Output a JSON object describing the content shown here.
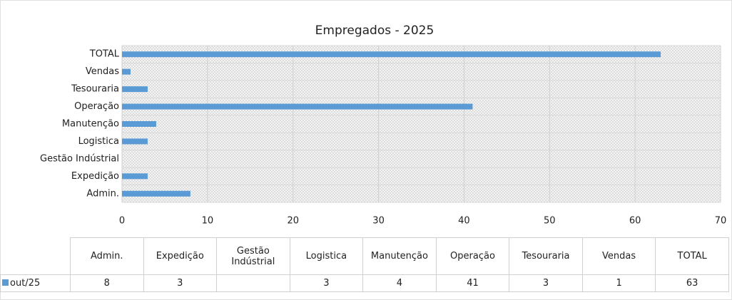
{
  "chart_data": {
    "type": "bar",
    "orientation": "horizontal",
    "title": "Empregados - 2025",
    "categories": [
      "Admin.",
      "Expedição",
      "Gestão Indústrial",
      "Logistica",
      "Manutenção",
      "Operação",
      "Tesouraria",
      "Vendas",
      "TOTAL"
    ],
    "series": [
      {
        "name": "out/25",
        "color": "#5b9bd5",
        "values": [
          8,
          3,
          null,
          3,
          4,
          41,
          3,
          1,
          63
        ]
      }
    ],
    "xlim": [
      0,
      70
    ],
    "xticks": [
      0,
      10,
      20,
      30,
      40,
      50,
      60,
      70
    ],
    "grid": true,
    "data_table": true
  }
}
